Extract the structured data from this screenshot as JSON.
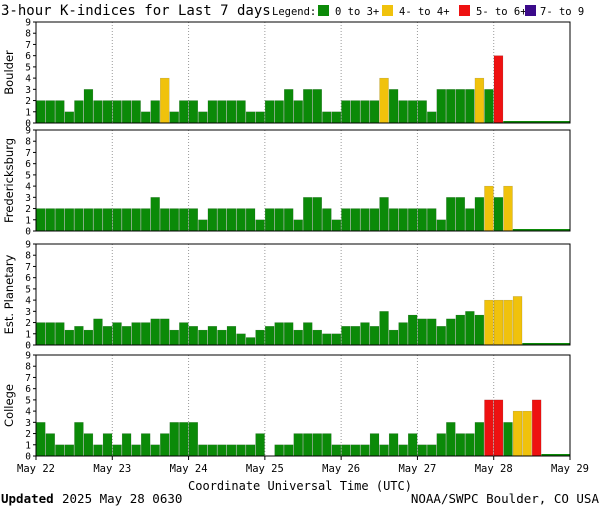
{
  "colors": {
    "green": "#0b8a08",
    "yellow": "#f0c20c",
    "red": "#ee1111",
    "purple": "#3b0a8a",
    "grid": "#9a9a9a",
    "frame": "#000000",
    "background": "#ffffff"
  },
  "title": "3-hour K-indices for Last 7 days",
  "legend": {
    "label": "Legend:",
    "entries": [
      {
        "label": "0 to 3+",
        "color": "#0b8a08"
      },
      {
        "label": "4- to 4+",
        "color": "#f0c20c"
      },
      {
        "label": "5- to 6+",
        "color": "#ee1111"
      },
      {
        "label": "7- to 9",
        "color": "#3b0a8a"
      }
    ]
  },
  "x_axis": {
    "label": "Coordinate Universal Time (UTC)",
    "ticks": [
      "May 22",
      "May 23",
      "May 24",
      "May 25",
      "May 26",
      "May 27",
      "May 28",
      "May 29"
    ]
  },
  "footer": {
    "updated_label": "Updated",
    "updated_value": "2025 May 28 0630",
    "source": "NOAA/SWPC Boulder, CO USA"
  },
  "chart_data": [
    {
      "type": "bar",
      "station": "Boulder",
      "ylim": [
        0,
        9
      ],
      "y_ticks": [
        "0",
        "1",
        "2",
        "3",
        "4",
        "5",
        "6",
        "7",
        "8",
        "9"
      ],
      "interval_hours": 3,
      "values": [
        2,
        2,
        2,
        1,
        2,
        3,
        2,
        2,
        2,
        2,
        2,
        1,
        2,
        4,
        1,
        2,
        2,
        1,
        2,
        2,
        2,
        2,
        1,
        1,
        2,
        2,
        3,
        2,
        3,
        3,
        1,
        1,
        2,
        2,
        2,
        2,
        4,
        3,
        2,
        2,
        2,
        1,
        3,
        3,
        3,
        3,
        4,
        3,
        6
      ]
    },
    {
      "type": "bar",
      "station": "Fredericksburg",
      "ylim": [
        0,
        9
      ],
      "y_ticks": [
        "0",
        "1",
        "2",
        "3",
        "4",
        "5",
        "6",
        "7",
        "8",
        "9"
      ],
      "interval_hours": 3,
      "values": [
        2,
        2,
        2,
        2,
        2,
        2,
        2,
        2,
        2,
        2,
        2,
        2,
        3,
        2,
        2,
        2,
        2,
        1,
        2,
        2,
        2,
        2,
        2,
        1,
        2,
        2,
        2,
        1,
        3,
        3,
        2,
        1,
        2,
        2,
        2,
        2,
        3,
        2,
        2,
        2,
        2,
        2,
        1,
        3,
        3,
        2,
        3,
        4,
        3,
        4
      ]
    },
    {
      "type": "bar",
      "station": "Est. Planetary",
      "ylim": [
        0,
        9
      ],
      "y_ticks": [
        "0",
        "1",
        "2",
        "3",
        "4",
        "5",
        "6",
        "7",
        "8",
        "9"
      ],
      "interval_hours": 3,
      "values": [
        2,
        2,
        2,
        1.33,
        1.67,
        1.33,
        2.33,
        1.67,
        2,
        1.67,
        2,
        2,
        2.33,
        2.33,
        1.33,
        2,
        1.67,
        1.33,
        1.67,
        1.33,
        1.67,
        1,
        0.67,
        1.33,
        1.67,
        2,
        2,
        1.33,
        2,
        1.33,
        1,
        1,
        1.67,
        1.67,
        2,
        1.67,
        3,
        1.33,
        2,
        2.67,
        2.33,
        2.33,
        1.67,
        2.33,
        2.67,
        3,
        2.67,
        4,
        4,
        4,
        4.33
      ]
    },
    {
      "type": "bar",
      "station": "College",
      "ylim": [
        0,
        9
      ],
      "y_ticks": [
        "0",
        "1",
        "2",
        "3",
        "4",
        "5",
        "6",
        "7",
        "8",
        "9"
      ],
      "interval_hours": 3,
      "values": [
        3,
        2,
        1,
        1,
        3,
        2,
        1,
        2,
        1,
        2,
        1,
        2,
        1,
        2,
        3,
        3,
        3,
        1,
        1,
        1,
        1,
        1,
        1,
        2,
        0,
        1,
        1,
        2,
        2,
        2,
        2,
        1,
        1,
        1,
        1,
        2,
        1,
        2,
        1,
        2,
        1,
        1,
        2,
        3,
        2,
        2,
        3,
        5,
        5,
        3,
        4,
        4,
        5
      ]
    }
  ]
}
